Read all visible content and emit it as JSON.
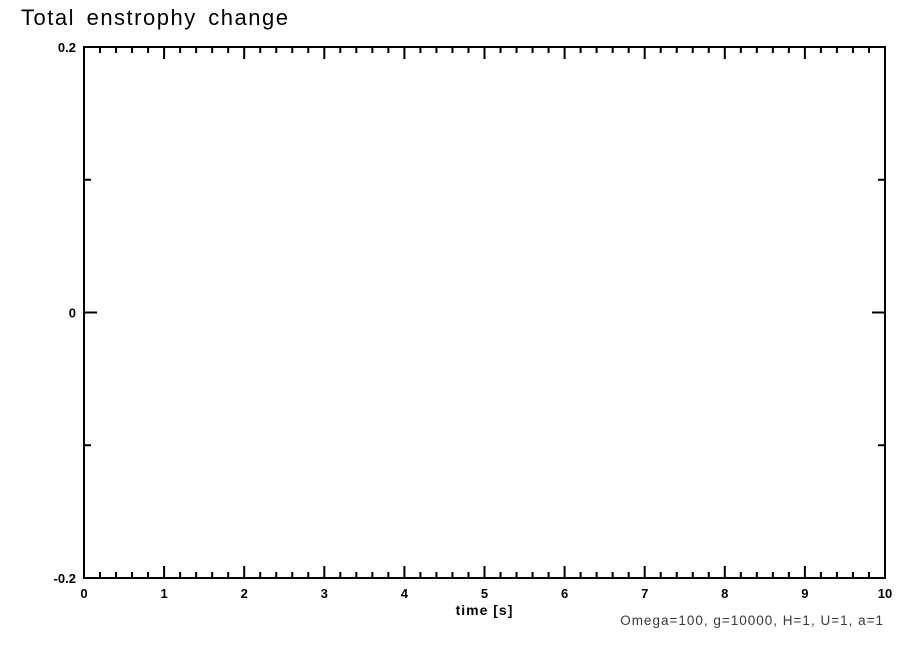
{
  "chart_data": {
    "type": "line",
    "title": "Total enstrophy change",
    "xlabel": "time [s]",
    "ylabel": "",
    "xlim": [
      0,
      10
    ],
    "ylim": [
      -0.2,
      0.2
    ],
    "x_ticks": {
      "values": [
        0,
        1,
        2,
        3,
        4,
        5,
        6,
        7,
        8,
        9,
        10
      ],
      "labels": [
        "0",
        "1",
        "2",
        "3",
        "4",
        "5",
        "6",
        "7",
        "8",
        "9",
        "10"
      ],
      "minor_step": 0.2
    },
    "y_ticks": {
      "values": [
        -0.2,
        0,
        0.2
      ],
      "labels": [
        "-0.2",
        "0",
        "0.2"
      ],
      "minor_step": 0.1
    },
    "series": [],
    "grid": false,
    "legend": false,
    "frame_color": "#000000",
    "annotation": "Omega=100, g=10000, H=1, U=1, a=1",
    "annotation_color": "#3a3a3a"
  }
}
